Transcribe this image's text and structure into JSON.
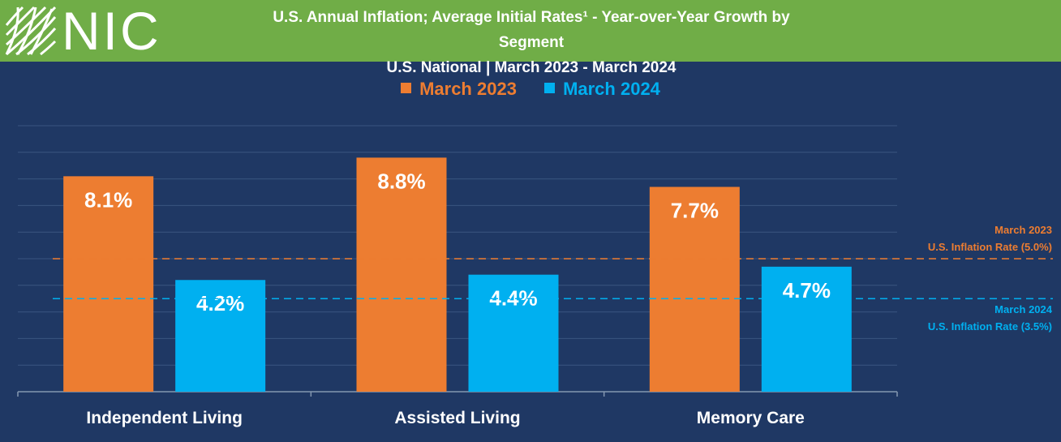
{
  "header": {
    "logo_text": "NIC",
    "title_line1": "U.S. Annual Inflation; Average Initial Rates¹ - Year-over-Year Growth by Segment",
    "title_line2": "U.S. National | March 2023 - March 2024"
  },
  "colors": {
    "header_bg": "#70ad47",
    "chart_bg": "#1f3864",
    "march_2023": "#ed7d31",
    "march_2024": "#00b0f0"
  },
  "chart_data": {
    "type": "bar",
    "categories": [
      "Independent Living",
      "Assisted Living",
      "Memory Care"
    ],
    "series": [
      {
        "name": "March 2023",
        "values": [
          8.1,
          8.8,
          7.7
        ],
        "labels": [
          "8.1%",
          "8.8%",
          "7.7%"
        ]
      },
      {
        "name": "March 2024",
        "values": [
          4.2,
          4.4,
          4.7
        ],
        "labels": [
          "4.2%",
          "4.4%",
          "4.7%"
        ]
      }
    ],
    "ylim": [
      0,
      10
    ],
    "grid": true,
    "legend_position": "top-center",
    "reference_lines": [
      {
        "value": 5.0,
        "line1": "March 2023",
        "line2": "U.S. Inflation Rate (5.0%)",
        "series": "March 2023"
      },
      {
        "value": 3.5,
        "line1": "March 2024",
        "line2": "U.S. Inflation Rate (3.5%)",
        "series": "March 2024"
      }
    ]
  }
}
